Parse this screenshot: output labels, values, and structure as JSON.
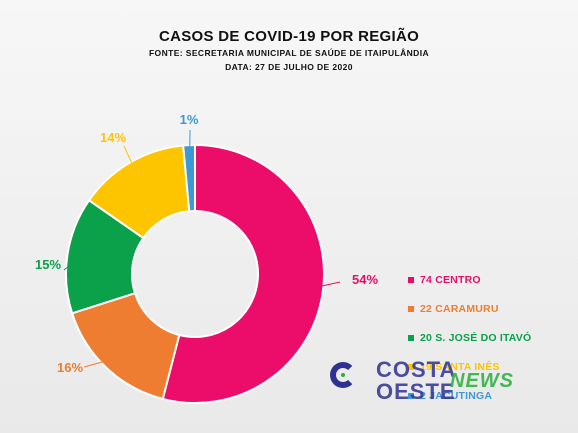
{
  "title": "CASOS DE COVID-19 POR REGIÃO",
  "subtitle1": "FONTE: SECRETARIA MUNICIPAL DE SAÚDE DE ITAIPULÂNDIA",
  "subtitle2": "DATA: 27 DE JULHO DE 2020",
  "chart_data": {
    "type": "pie",
    "title": "CASOS DE COVID-19 POR REGIÃO",
    "categories": [
      "CENTRO",
      "CARAMURU",
      "S. JOSÉ DO ITAVÓ",
      "SANTA INÊS",
      "JACUTINGA"
    ],
    "values": [
      74,
      22,
      20,
      19,
      2
    ],
    "percent_labels": [
      "54%",
      "16%",
      "15%",
      "14%",
      "1%"
    ],
    "legend_labels": [
      "74 CENTRO",
      "22 CARAMURU",
      "20 S. JOSÉ DO ITAVÓ",
      "19 SANTA INÊS",
      "2 JACUTINGA"
    ],
    "colors": [
      "#ec0c69",
      "#ef7d31",
      "#0aa14a",
      "#fdc500",
      "#3e98d6"
    ],
    "donut": true,
    "legend_position": "right"
  },
  "logo": {
    "word1": "COSTA",
    "word2": "OESTE",
    "word3": "NEWS",
    "icon": "costa-oeste-c-icon"
  }
}
